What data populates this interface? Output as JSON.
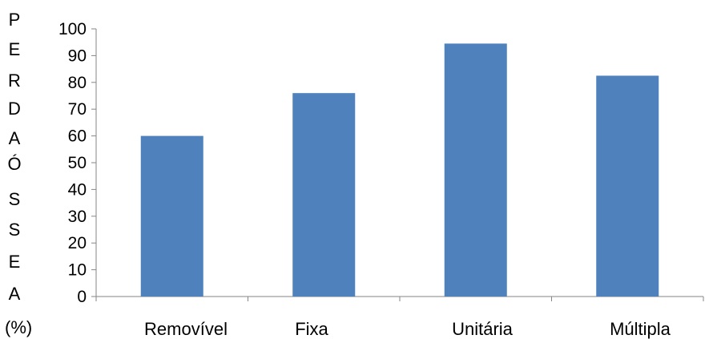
{
  "chart_data": {
    "type": "bar",
    "categories": [
      "Removível",
      "Fixa",
      "Unitária",
      "Múltipla"
    ],
    "values": [
      60,
      76,
      94.5,
      82.5
    ],
    "ylabel_letters": [
      "P",
      "E",
      "R",
      "D",
      "A",
      "Ó",
      "S",
      "S",
      "E",
      "A"
    ],
    "ylabel_unit": "(%)",
    "yticks": [
      "0",
      "10",
      "20",
      "30",
      "40",
      "50",
      "60",
      "70",
      "80",
      "90",
      "100"
    ],
    "ylim": [
      0,
      100
    ],
    "bar_color": "#4f81bd",
    "grid": false,
    "legend": "none"
  }
}
